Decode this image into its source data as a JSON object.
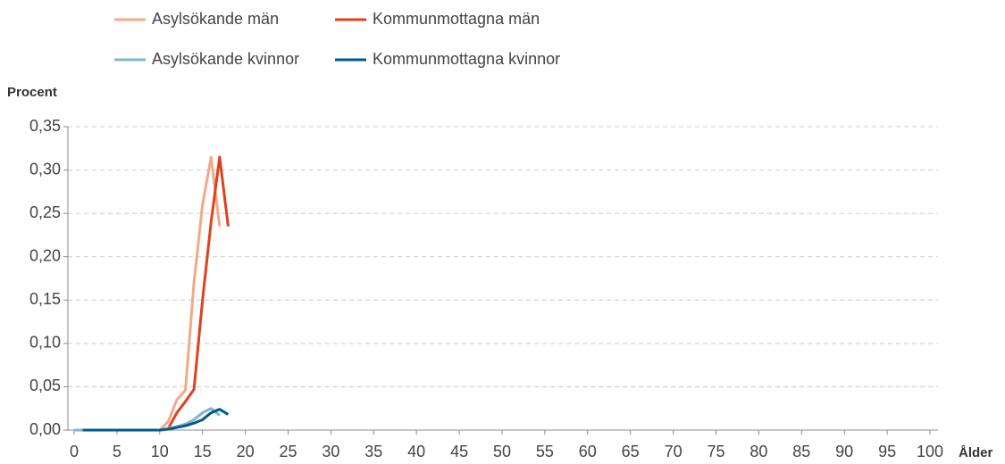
{
  "chart_data": {
    "type": "line",
    "ylabel": "Procent",
    "xlabel": "Ålder",
    "x": [
      0,
      1,
      2,
      3,
      4,
      5,
      6,
      7,
      8,
      9,
      10,
      11,
      12,
      13,
      14,
      15,
      16,
      17,
      18
    ],
    "series": [
      {
        "name": "Asylsökande män",
        "color": "#f2a98a",
        "values": [
          0,
          0,
          0,
          0,
          0,
          0,
          0,
          0,
          0,
          0,
          0,
          0.01,
          0.035,
          0.046,
          0.17,
          0.26,
          0.315,
          0.235,
          null
        ]
      },
      {
        "name": "Kommunmottagna män",
        "color": "#e0401e",
        "values": [
          null,
          0,
          0,
          0,
          0,
          0,
          0,
          0,
          0,
          0,
          0,
          0.002,
          0.02,
          0.033,
          0.047,
          0.15,
          0.24,
          0.315,
          0.235
        ]
      },
      {
        "name": "Asylsökande kvinnor",
        "color": "#82b4cc",
        "values": [
          0,
          0,
          0,
          0,
          0,
          0,
          0,
          0,
          0,
          0,
          0,
          0.002,
          0.004,
          0.007,
          0.012,
          0.02,
          0.025,
          0.017,
          null
        ]
      },
      {
        "name": "Kommunmottagna kvinnor",
        "color": "#005a8a",
        "values": [
          null,
          0,
          0,
          0,
          0,
          0,
          0,
          0,
          0,
          0,
          0,
          0.001,
          0.003,
          0.005,
          0.008,
          0.012,
          0.02,
          0.024,
          0.018
        ]
      }
    ],
    "xlim": [
      0,
      100
    ],
    "xticks": [
      0,
      5,
      10,
      15,
      20,
      25,
      30,
      35,
      40,
      45,
      50,
      55,
      60,
      65,
      70,
      75,
      80,
      85,
      90,
      95,
      100
    ],
    "ylim": [
      0,
      0.35
    ],
    "yticks": [
      {
        "value": 0,
        "label": "0,00"
      },
      {
        "value": 0.05,
        "label": "0,05"
      },
      {
        "value": 0.1,
        "label": "0,10"
      },
      {
        "value": 0.15,
        "label": "0,15"
      },
      {
        "value": 0.2,
        "label": "0,20"
      },
      {
        "value": 0.25,
        "label": "0,25"
      },
      {
        "value": 0.3,
        "label": "0,30"
      },
      {
        "value": 0.35,
        "label": "0,35"
      }
    ],
    "grid": true
  }
}
